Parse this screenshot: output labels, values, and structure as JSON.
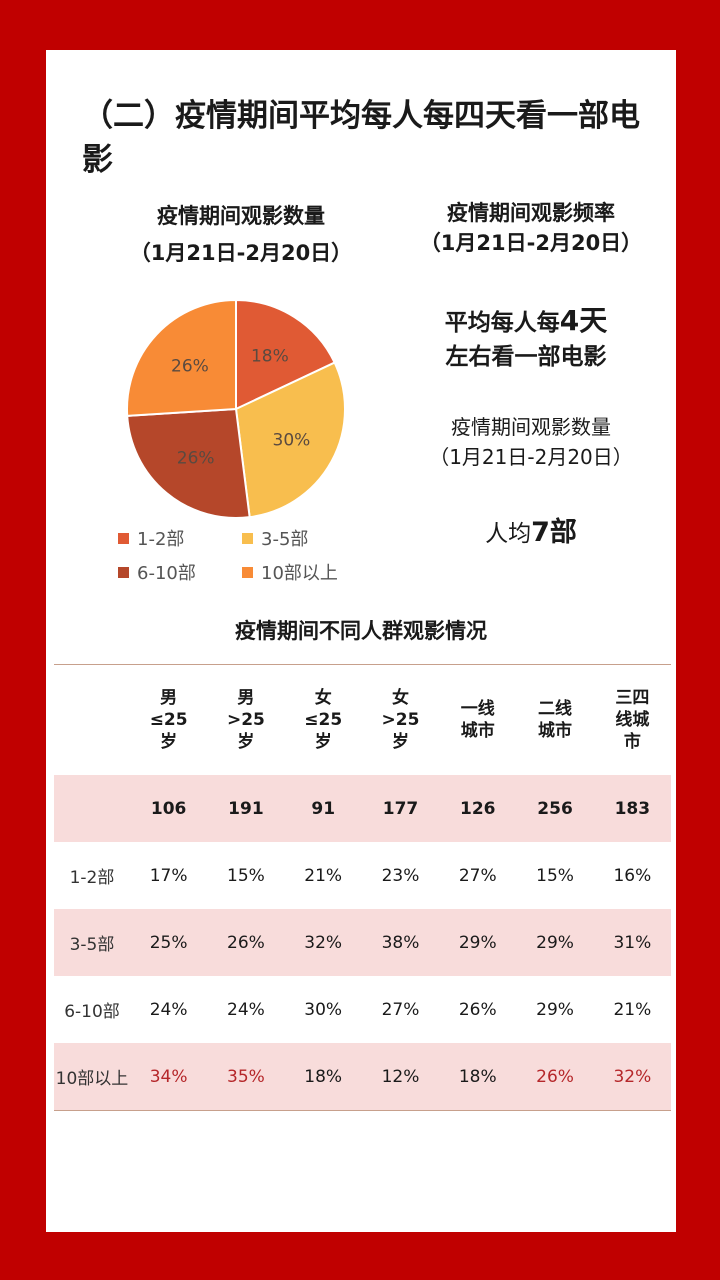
{
  "title": "（二）疫情期间平均每人每四天看一部电影",
  "pie_title_line1": "疫情期间观影数量",
  "pie_title_line2": "（1月21日-2月20日）",
  "freq_title_line1": "疫情期间观影频率",
  "freq_title_line2": "（1月21日-2月20日）",
  "freq_line1_prefix": "平均每人每",
  "freq_line1_big": "4天",
  "freq_line2": "左右看一部电影",
  "count_title_line1": "疫情期间观影数量",
  "count_title_line2": "（1月21日-2月20日）",
  "avg_prefix": "人均",
  "avg_big": "7部",
  "chart_data": {
    "type": "pie",
    "title": "疫情期间观影数量（1月21日-2月20日）",
    "legend_position": "bottom",
    "slices": [
      {
        "label": "1-2部",
        "value": 18,
        "display": "18%",
        "color": "#e05a34"
      },
      {
        "label": "3-5部",
        "value": 30,
        "display": "30%",
        "color": "#f8be4e"
      },
      {
        "label": "6-10部",
        "value": 26,
        "display": "26%",
        "color": "#b5472a"
      },
      {
        "label": "10部以上",
        "value": 26,
        "display": "26%",
        "color": "#f88b36"
      }
    ]
  },
  "table": {
    "title": "疫情期间不同人群观影情况",
    "columns": [
      "男\n≤25\n岁",
      "男\n>25\n岁",
      "女\n≤25\n岁",
      "女\n>25\n岁",
      "一线\n城市",
      "二线\n城市",
      "三四\n线城\n市"
    ],
    "rows": [
      {
        "label": "",
        "values": [
          "106",
          "191",
          "91",
          "177",
          "126",
          "256",
          "183"
        ]
      },
      {
        "label": "1-2部",
        "values": [
          "17%",
          "15%",
          "21%",
          "23%",
          "27%",
          "15%",
          "16%"
        ]
      },
      {
        "label": "3-5部",
        "values": [
          "25%",
          "26%",
          "32%",
          "38%",
          "29%",
          "29%",
          "31%"
        ]
      },
      {
        "label": "6-10部",
        "values": [
          "24%",
          "24%",
          "30%",
          "27%",
          "26%",
          "29%",
          "21%"
        ]
      },
      {
        "label": "10部以上",
        "values": [
          "34%",
          "35%",
          "18%",
          "12%",
          "18%",
          "26%",
          "32%"
        ]
      }
    ],
    "highlight_color": "#b5272a"
  }
}
